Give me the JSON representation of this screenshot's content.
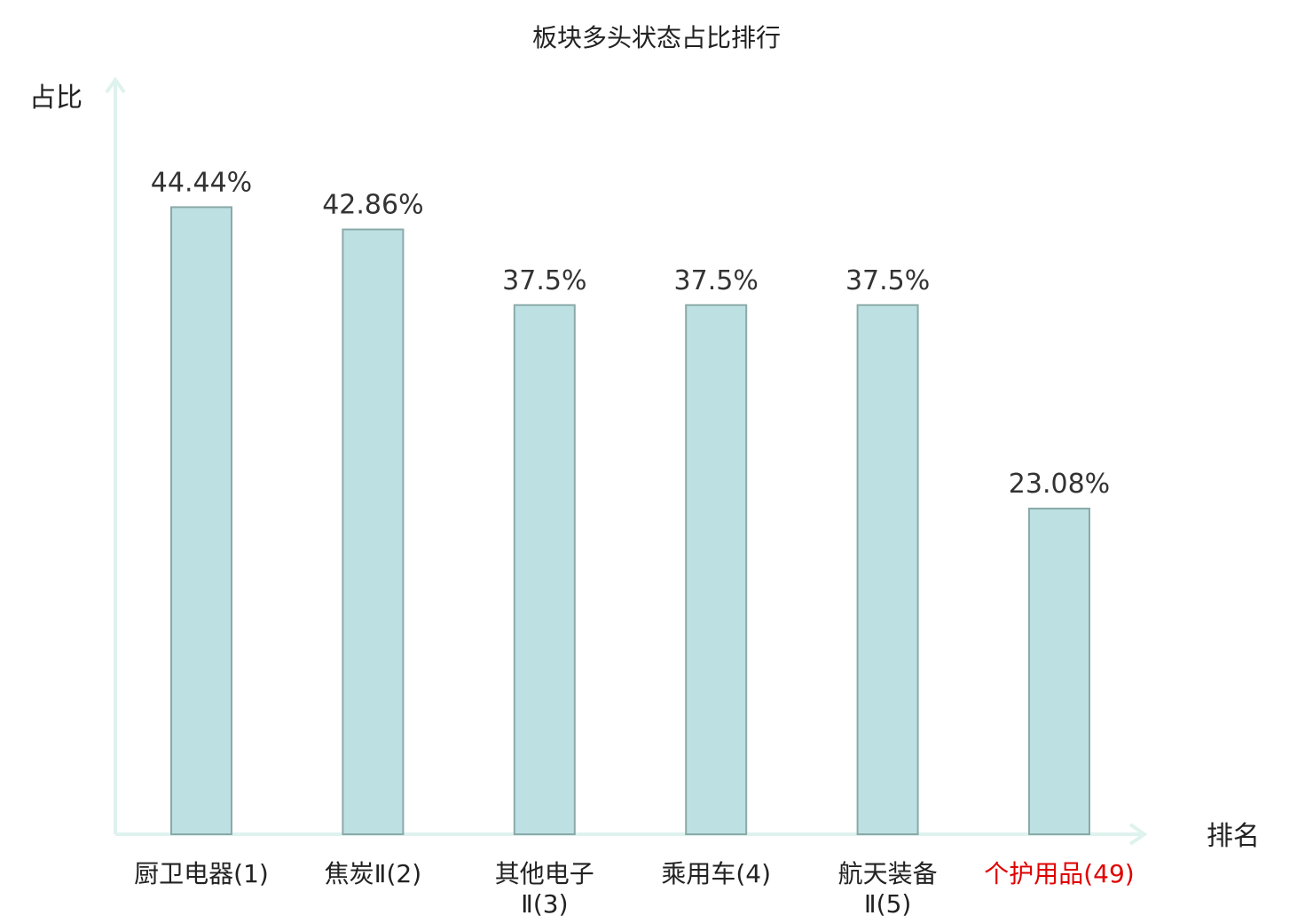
{
  "chart_data": {
    "type": "bar",
    "title": "板块多头状态占比排行",
    "ylabel": "占比",
    "xlabel": "排名",
    "ylim": [
      0,
      50
    ],
    "grid": false,
    "categories": [
      {
        "lines": [
          "厨卫电器(1)"
        ],
        "highlight": false
      },
      {
        "lines": [
          "焦炭Ⅱ(2)"
        ],
        "highlight": false
      },
      {
        "lines": [
          "其他电子",
          "Ⅱ(3)"
        ],
        "highlight": false
      },
      {
        "lines": [
          "乘用车(4)"
        ],
        "highlight": false
      },
      {
        "lines": [
          "航天装备",
          "Ⅱ(5)"
        ],
        "highlight": false
      },
      {
        "lines": [
          "个护用品(49)"
        ],
        "highlight": true
      }
    ],
    "values": [
      44.44,
      42.86,
      37.5,
      37.5,
      37.5,
      23.08
    ],
    "value_labels": [
      "44.44%",
      "42.86%",
      "37.5%",
      "37.5%",
      "37.5%",
      "23.08%"
    ],
    "colors": {
      "bar_fill": "#bde0e3",
      "bar_stroke": "#8aaaa8",
      "axis": "#def2ee",
      "highlight_text": "#e00000",
      "text": "#222222"
    }
  }
}
